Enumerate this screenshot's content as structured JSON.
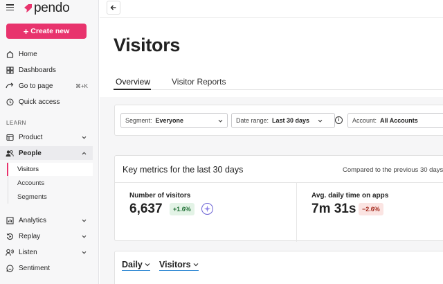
{
  "app": {
    "logo_text": "pendo",
    "brand_color": "#e8336d"
  },
  "sidebar": {
    "create_label": "Create new",
    "items": [
      {
        "label": "Home",
        "icon": "home-icon"
      },
      {
        "label": "Dashboards",
        "icon": "dashboard-icon"
      },
      {
        "label": "Go to page",
        "icon": "go-to-page-icon",
        "shortcut": "⌘+K"
      },
      {
        "label": "Quick access",
        "icon": "clock-icon"
      }
    ],
    "section_label": "LEARN",
    "learn_items": [
      {
        "label": "Product",
        "icon": "product-icon"
      },
      {
        "label": "People",
        "icon": "people-icon"
      },
      {
        "label": "Analytics",
        "icon": "analytics-icon"
      },
      {
        "label": "Replay",
        "icon": "replay-icon"
      },
      {
        "label": "Listen",
        "icon": "listen-icon"
      },
      {
        "label": "Sentiment",
        "icon": "sentiment-icon"
      }
    ],
    "people_sub": [
      "Visitors",
      "Accounts",
      "Segments"
    ]
  },
  "page": {
    "title": "Visitors",
    "tabs": [
      "Overview",
      "Visitor Reports"
    ]
  },
  "filters": {
    "segment_label": "Segment:",
    "segment_value": "Everyone",
    "date_label": "Date range:",
    "date_value": "Last 30 days",
    "account_label": "Account:",
    "account_value": "All Accounts"
  },
  "metrics": {
    "title": "Key metrics for the last 30 days",
    "compare_text": "Compared to the previous 30 days",
    "visitors_label": "Number of visitors",
    "visitors_value": "6,637",
    "visitors_change": "+1.6%",
    "time_label": "Avg. daily time on apps",
    "time_value": "7m 31s",
    "time_change": "−2.6%"
  },
  "chart_controls": {
    "interval": "Daily",
    "metric": "Visitors"
  }
}
